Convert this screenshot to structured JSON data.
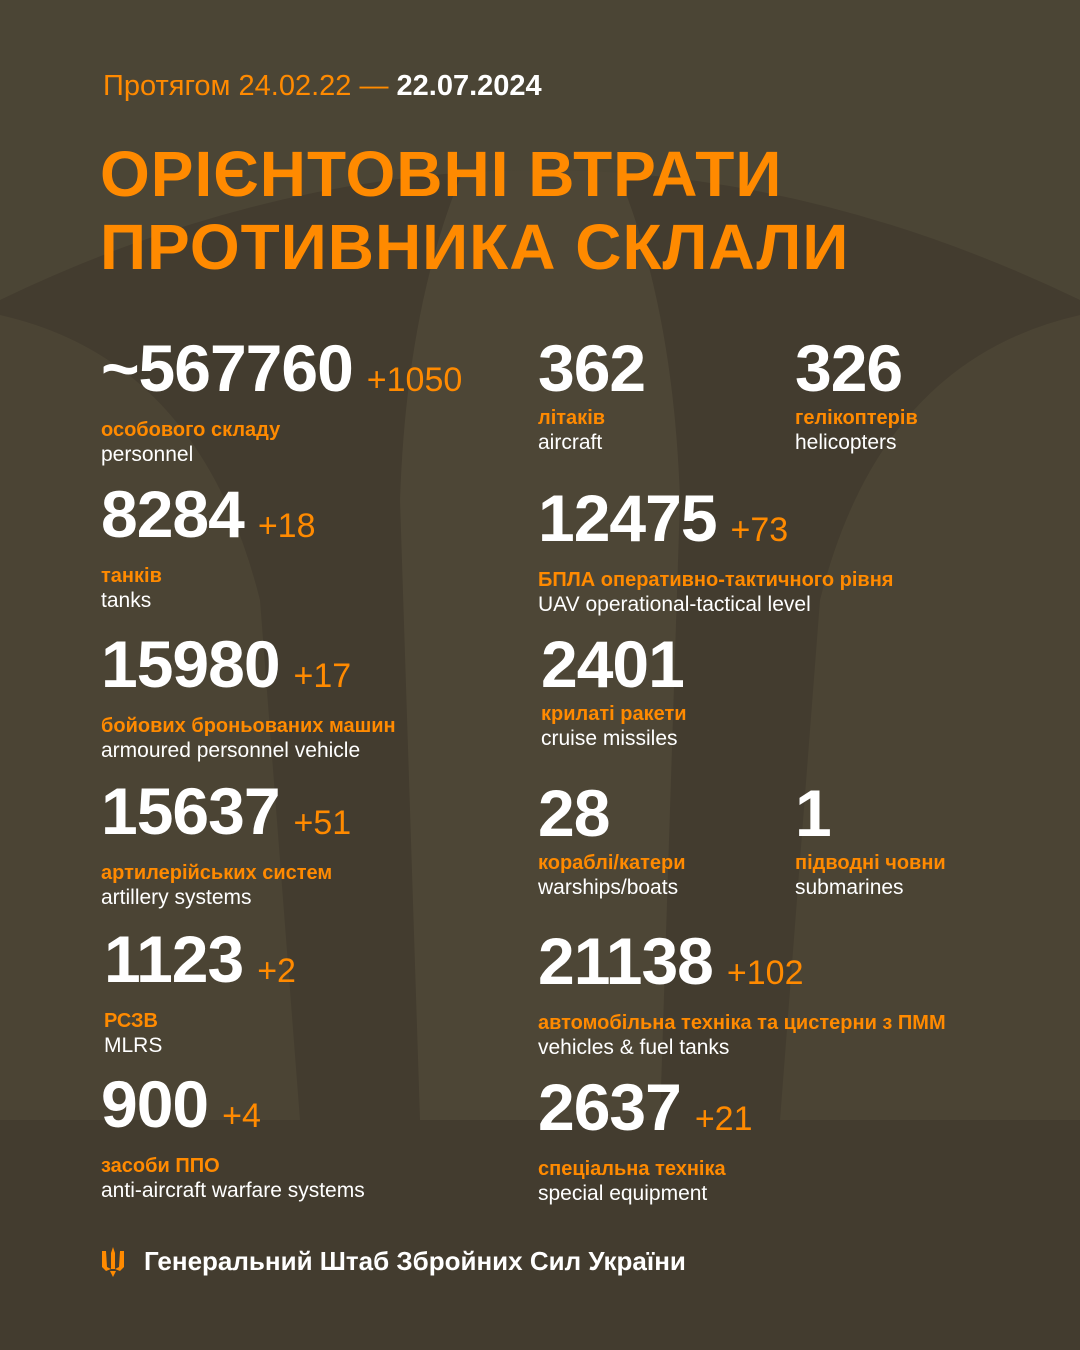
{
  "header": {
    "period_prefix": "Протягом 24.02.22 —",
    "period_end": "22.07.2024",
    "title_line1": "ОРІЄНТОВНІ ВТРАТИ",
    "title_line2": "ПРОТИВНИКА СКЛАЛИ"
  },
  "colors": {
    "accent": "#ff8a00",
    "background": "#433c2f",
    "text": "#ffffff"
  },
  "stats": [
    {
      "value": "~567760",
      "delta": "+1050",
      "uk": "особового складу",
      "en": "personnel"
    },
    {
      "value": "362",
      "delta": "",
      "uk": "літаків",
      "en": "aircraft"
    },
    {
      "value": "326",
      "delta": "",
      "uk": "гелікоптерів",
      "en": "helicopters"
    },
    {
      "value": "8284",
      "delta": "+18",
      "uk": "танків",
      "en": "tanks"
    },
    {
      "value": "12475",
      "delta": "+73",
      "uk": "БПЛА оперативно-тактичного рівня",
      "en": "UAV operational-tactical level"
    },
    {
      "value": "15980",
      "delta": "+17",
      "uk": "бойових броньованих машин",
      "en": "armoured personnel vehicle"
    },
    {
      "value": "2401",
      "delta": "",
      "uk": "крилаті ракети",
      "en": "cruise missiles"
    },
    {
      "value": "15637",
      "delta": "+51",
      "uk": "артилерійських систем",
      "en": "artillery systems"
    },
    {
      "value": "28",
      "delta": "",
      "uk": "кораблі/катери",
      "en": "warships/boats"
    },
    {
      "value": "1",
      "delta": "",
      "uk": "підводні човни",
      "en": "submarines"
    },
    {
      "value": "1123",
      "delta": "+2",
      "uk": "РСЗВ",
      "en": "MLRS"
    },
    {
      "value": "21138",
      "delta": "+102",
      "uk": "автомобільна техніка та цистерни з ПММ",
      "en": "vehicles & fuel tanks"
    },
    {
      "value": "900",
      "delta": "+4",
      "uk": "засоби ППО",
      "en": "anti-aircraft warfare systems"
    },
    {
      "value": "2637",
      "delta": "+21",
      "uk": "спеціальна техніка",
      "en": "special equipment"
    }
  ],
  "footer": {
    "icon": "trident-icon",
    "text": "Генеральний Штаб Збройних Сил України"
  }
}
